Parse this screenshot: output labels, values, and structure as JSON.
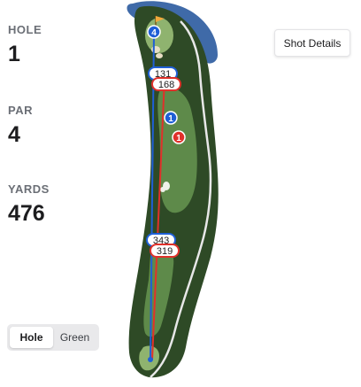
{
  "stats": {
    "hole": {
      "label": "HOLE",
      "value": "1"
    },
    "par": {
      "label": "PAR",
      "value": "4"
    },
    "yards": {
      "label": "YARDS",
      "value": "476"
    }
  },
  "shot_details_button": "Shot Details",
  "view_toggle": {
    "options": [
      "Hole",
      "Green"
    ],
    "selected": "Hole"
  },
  "map": {
    "colors": {
      "water": "#3f6aa8",
      "rough": "#2e4a26",
      "fairway": "#5e8a4a",
      "green": "#8fb36f",
      "cart_path": "#e8e8e8",
      "player_blue": "#1f5fd6",
      "player_red": "#e0312b"
    },
    "shot_markers": [
      {
        "label": "4",
        "player": "blue",
        "kind": "circle"
      },
      {
        "label": "1",
        "player": "blue",
        "kind": "circle"
      },
      {
        "label": "1",
        "player": "red",
        "kind": "circle"
      }
    ],
    "distance_labels": [
      {
        "label": "131",
        "player": "blue"
      },
      {
        "label": "168",
        "player": "red"
      },
      {
        "label": "343",
        "player": "blue"
      },
      {
        "label": "319",
        "player": "red"
      }
    ]
  }
}
